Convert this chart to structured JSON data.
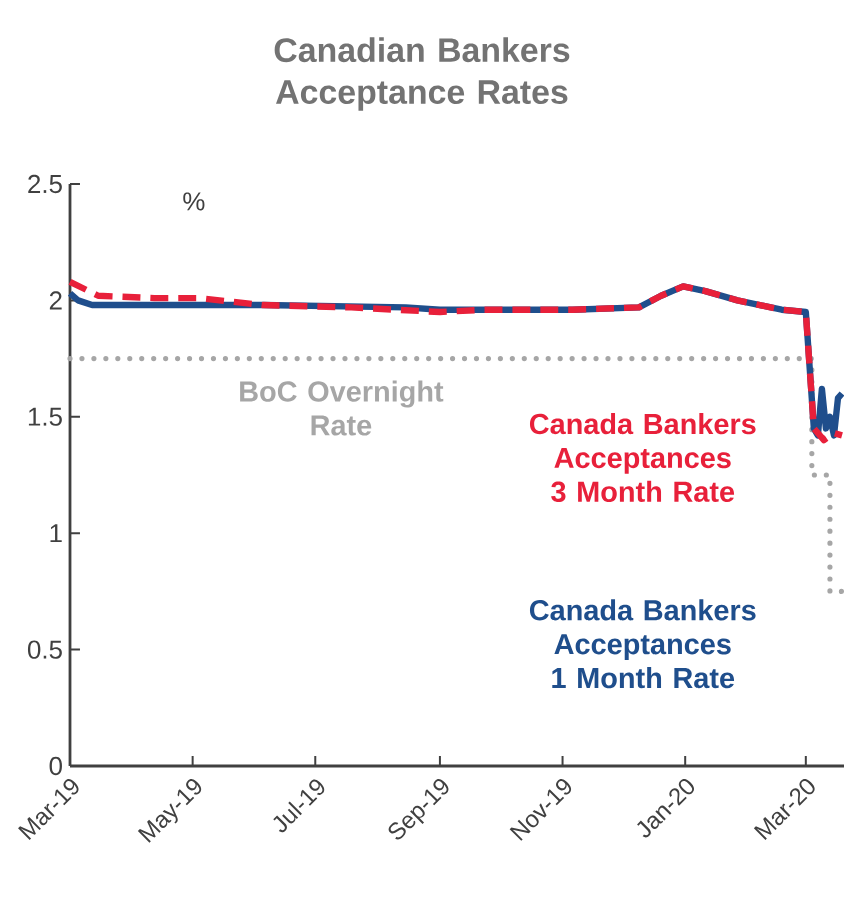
{
  "chart_data": {
    "type": "line",
    "title": "Canadian Bankers Acceptance Rates",
    "ylabel": "%",
    "xlim": [
      "2019-03-01",
      "2020-03-20"
    ],
    "xticks": [
      {
        "value": "2019-03-01",
        "label": "Mar-19"
      },
      {
        "value": "2019-05-01",
        "label": "May-19"
      },
      {
        "value": "2019-07-01",
        "label": "Jul-19"
      },
      {
        "value": "2019-09-01",
        "label": "Sep-19"
      },
      {
        "value": "2019-11-01",
        "label": "Nov-19"
      },
      {
        "value": "2020-01-01",
        "label": "Jan-20"
      },
      {
        "value": "2020-03-01",
        "label": "Mar-20"
      }
    ],
    "ylim": [
      0,
      2.5
    ],
    "yticks": [
      0,
      0.5,
      1,
      1.5,
      2,
      2.5
    ],
    "legend": false,
    "grid": false,
    "marker": "none",
    "series": [
      {
        "name": "BoC Overnight Rate",
        "type": "step",
        "color": "#a6a6a6",
        "line_style": "dotted",
        "x": [
          "2019-03-01",
          "2020-03-04",
          "2020-03-13",
          "2020-03-20"
        ],
        "values": [
          1.75,
          1.25,
          0.75,
          0.75
        ]
      },
      {
        "name": "Canada Bankers Acceptances 1 Month Rate",
        "color": "#1f4e8c",
        "line_style": "solid",
        "x": [
          "2019-03-01",
          "2019-03-05",
          "2019-03-12",
          "2019-06-05",
          "2019-08-15",
          "2019-09-01",
          "2019-11-06",
          "2019-12-09",
          "2019-12-20",
          "2019-12-31",
          "2020-01-11",
          "2020-01-27",
          "2020-02-18",
          "2020-03-01",
          "2020-03-03",
          "2020-03-05",
          "2020-03-07",
          "2020-03-09",
          "2020-03-11",
          "2020-03-13",
          "2020-03-15",
          "2020-03-17",
          "2020-03-19"
        ],
        "values": [
          2.03,
          2.0,
          1.98,
          1.98,
          1.97,
          1.96,
          1.96,
          1.97,
          2.02,
          2.06,
          2.04,
          2.0,
          1.96,
          1.95,
          1.7,
          1.45,
          1.42,
          1.62,
          1.45,
          1.5,
          1.42,
          1.58,
          1.6
        ]
      },
      {
        "name": "Canada Bankers Acceptances 3 Month Rate",
        "color": "#e8203a",
        "line_style": "dashed",
        "x": [
          "2019-03-01",
          "2019-03-08",
          "2019-03-15",
          "2019-04-12",
          "2019-05-04",
          "2019-06-05",
          "2019-07-19",
          "2019-09-01",
          "2019-09-23",
          "2019-11-06",
          "2019-12-09",
          "2019-12-20",
          "2019-12-31",
          "2020-01-11",
          "2020-01-27",
          "2020-02-18",
          "2020-03-01",
          "2020-03-03",
          "2020-03-05",
          "2020-03-10",
          "2020-03-15",
          "2020-03-19"
        ],
        "values": [
          2.08,
          2.05,
          2.02,
          2.01,
          2.01,
          1.98,
          1.97,
          1.95,
          1.96,
          1.96,
          1.97,
          2.02,
          2.06,
          2.04,
          2.0,
          1.96,
          1.95,
          1.7,
          1.45,
          1.4,
          1.43,
          1.42
        ]
      }
    ]
  }
}
